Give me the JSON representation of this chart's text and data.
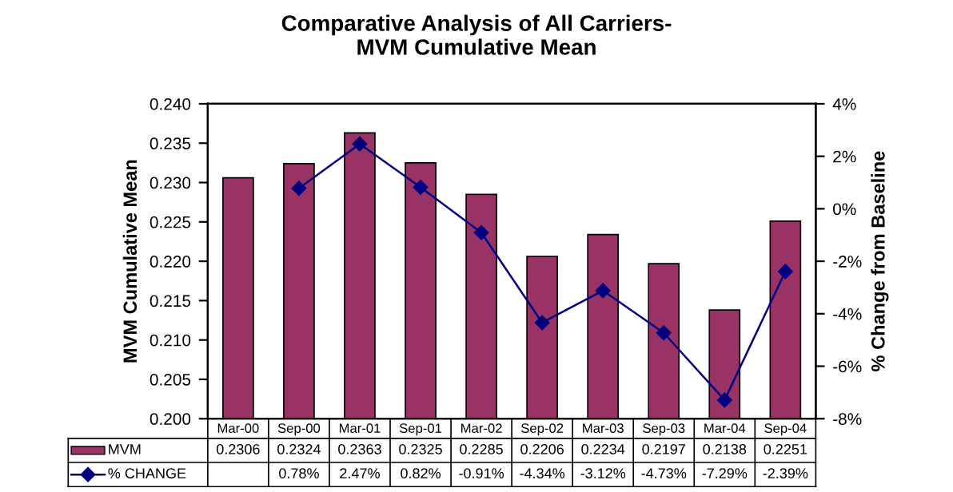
{
  "chart_data": {
    "type": "bar",
    "title": "Comparative Analysis of All Carriers-\nMVM Cumulative Mean",
    "ylabel": "MVM Cumulative Mean",
    "y2label": "% Change from Baseline",
    "categories": [
      "Mar-00",
      "Sep-00",
      "Mar-01",
      "Sep-01",
      "Mar-02",
      "Sep-02",
      "Mar-03",
      "Sep-03",
      "Mar-04",
      "Sep-04"
    ],
    "series": [
      {
        "name": "MVM",
        "color": "#993366",
        "values": [
          0.2306,
          0.2324,
          0.2363,
          0.2325,
          0.2285,
          0.2206,
          0.2234,
          0.2197,
          0.2138,
          0.2251
        ],
        "value_labels": [
          "0.2306",
          "0.2324",
          "0.2363",
          "0.2325",
          "0.2285",
          "0.2206",
          "0.2234",
          "0.2197",
          "0.2138",
          "0.2251"
        ]
      },
      {
        "name": "% CHANGE",
        "type": "line",
        "axis": "y2",
        "color": "#000080",
        "marker": "diamond",
        "values": [
          null,
          0.78,
          2.47,
          0.82,
          -0.91,
          -4.34,
          -3.12,
          -4.73,
          -7.29,
          -2.39
        ],
        "value_labels": [
          null,
          "0.78%",
          "2.47%",
          "0.82%",
          "-0.91%",
          "-4.34%",
          "-3.12%",
          "-4.73%",
          "-7.29%",
          "-2.39%"
        ]
      }
    ],
    "ylim": [
      0.2,
      0.24
    ],
    "yticks": [
      {
        "value": 0.2,
        "label": "0.200"
      },
      {
        "value": 0.205,
        "label": "0.205"
      },
      {
        "value": 0.21,
        "label": "0.210"
      },
      {
        "value": 0.215,
        "label": "0.215"
      },
      {
        "value": 0.22,
        "label": "0.220"
      },
      {
        "value": 0.225,
        "label": "0.225"
      },
      {
        "value": 0.23,
        "label": "0.230"
      },
      {
        "value": 0.235,
        "label": "0.235"
      },
      {
        "value": 0.24,
        "label": "0.240"
      }
    ],
    "y2lim": [
      -8,
      4
    ],
    "y2ticks": [
      {
        "value": -8,
        "label": "-8%"
      },
      {
        "value": -6,
        "label": "-6%"
      },
      {
        "value": -4,
        "label": "-4%"
      },
      {
        "value": -2,
        "label": "-2%"
      },
      {
        "value": 0,
        "label": "0%"
      },
      {
        "value": 2,
        "label": "2%"
      },
      {
        "value": 4,
        "label": "4%"
      }
    ],
    "grid": false,
    "legend": "bottom left"
  }
}
